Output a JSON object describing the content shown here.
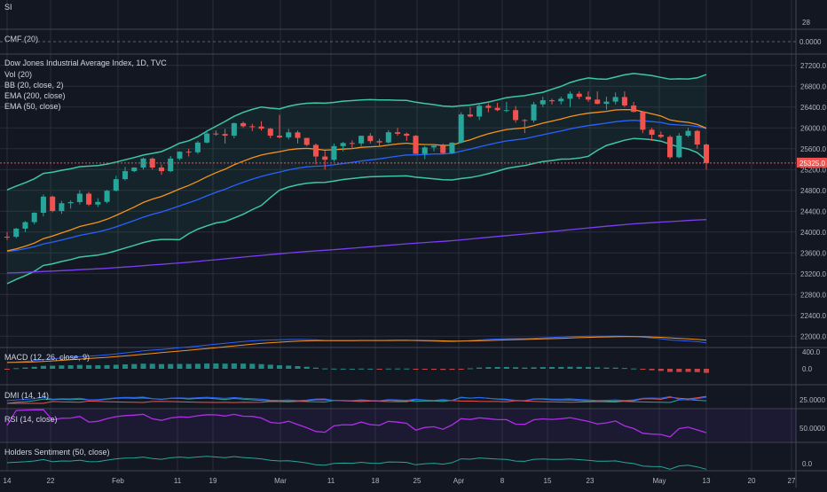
{
  "panes": {
    "si": {
      "label": "SI",
      "value_label": "28"
    },
    "cmf": {
      "label": "CMF (20)",
      "value_label": "0.0000"
    },
    "main": {
      "title": "Dow Jones Industrial Average Index, 1D, TVC",
      "indicators": [
        "Vol (20)",
        "BB (20, close, 2)",
        "EMA (200, close)",
        "EMA (50, close)"
      ],
      "price_label": "25325.0"
    },
    "macd": {
      "label": "MACD (12, 26, close, 9)",
      "ticks": [
        "400.0",
        "0.0"
      ]
    },
    "dmi": {
      "label": "DMI (14, 14)",
      "ticks": [
        "25.0000"
      ]
    },
    "rsi": {
      "label": "RSI (14, close)",
      "ticks": [
        "50.0000"
      ]
    },
    "holders": {
      "label": "Holders Sentiment (50, close)",
      "ticks": [
        "0.0"
      ]
    }
  },
  "colors": {
    "background": "#131722",
    "up": "#26a69a",
    "down": "#ef5350",
    "bb": "#3ec6a8",
    "ema50": "#f7931a",
    "ema200": "#7b3ff2",
    "ema_blue": "#2962ff",
    "price_tag": "#ef5350",
    "grid": "#2a2e39"
  },
  "chart_data": {
    "type": "candlestick",
    "y_ticks": [
      "27200.0",
      "26800.0",
      "26400.0",
      "26000.0",
      "25600.0",
      "25200.0",
      "24800.0",
      "24400.0",
      "24000.0",
      "23600.0",
      "23200.0",
      "22800.0",
      "22400.0",
      "22000.0"
    ],
    "ylim": [
      21800,
      27400
    ],
    "x_labels": [
      "14",
      "22",
      "Feb",
      "11",
      "19",
      "Mar",
      "11",
      "18",
      "25",
      "Apr",
      "8",
      "15",
      "23",
      "May",
      "13",
      "20",
      "27"
    ],
    "ohlc": [
      [
        23910,
        24000,
        23850,
        23909
      ],
      [
        23909,
        24080,
        23880,
        24065
      ],
      [
        24065,
        24210,
        24000,
        24190
      ],
      [
        24190,
        24380,
        24150,
        24370
      ],
      [
        24370,
        24720,
        24300,
        24680
      ],
      [
        24680,
        24700,
        24380,
        24404
      ],
      [
        24404,
        24600,
        24350,
        24553
      ],
      [
        24553,
        24610,
        24450,
        24575
      ],
      [
        24575,
        24800,
        24530,
        24737
      ],
      [
        24737,
        24770,
        24500,
        24528
      ],
      [
        24528,
        24650,
        24480,
        24579
      ],
      [
        24579,
        24810,
        24550,
        24793
      ],
      [
        24793,
        25080,
        24780,
        25015
      ],
      [
        25015,
        25250,
        24990,
        25169
      ],
      [
        25169,
        25240,
        25150,
        25239
      ],
      [
        25239,
        25430,
        25200,
        25411
      ],
      [
        25411,
        25430,
        25200,
        25239
      ],
      [
        25239,
        25300,
        25100,
        25169
      ],
      [
        25169,
        25460,
        25150,
        25411
      ],
      [
        25411,
        25550,
        25380,
        25543
      ],
      [
        25543,
        25600,
        25450,
        25532
      ],
      [
        25532,
        25750,
        25500,
        25718
      ],
      [
        25718,
        25960,
        25700,
        25891
      ],
      [
        25891,
        25950,
        25850,
        25883
      ],
      [
        25883,
        25980,
        25700,
        25850
      ],
      [
        25850,
        26100,
        25800,
        26091
      ],
      [
        26091,
        26120,
        26000,
        26031
      ],
      [
        26031,
        26080,
        25940,
        26026
      ],
      [
        26026,
        26130,
        25950,
        25985
      ],
      [
        25985,
        26000,
        25800,
        25850
      ],
      [
        25850,
        26250,
        25800,
        25819
      ],
      [
        25819,
        25980,
        25780,
        25914
      ],
      [
        25914,
        25950,
        25700,
        25807
      ],
      [
        25807,
        25810,
        25650,
        25673
      ],
      [
        25673,
        25700,
        25300,
        25450
      ],
      [
        25450,
        25560,
        25200,
        25388
      ],
      [
        25388,
        25700,
        25350,
        25650
      ],
      [
        25650,
        25730,
        25550,
        25709
      ],
      [
        25709,
        25760,
        25600,
        25702
      ],
      [
        25702,
        25850,
        25650,
        25848
      ],
      [
        25848,
        25900,
        25700,
        25745
      ],
      [
        25745,
        25790,
        25650,
        25720
      ],
      [
        25720,
        25960,
        25700,
        25916
      ],
      [
        25916,
        26000,
        25850,
        25887
      ],
      [
        25887,
        25910,
        25750,
        25849
      ],
      [
        25849,
        25860,
        25500,
        25502
      ],
      [
        25502,
        25650,
        25400,
        25625
      ],
      [
        25625,
        25680,
        25550,
        25657
      ],
      [
        25657,
        25700,
        25500,
        25516
      ],
      [
        25516,
        25720,
        25500,
        25717
      ],
      [
        25717,
        26300,
        25700,
        26258
      ],
      [
        26258,
        26400,
        26200,
        26218
      ],
      [
        26218,
        26450,
        26150,
        26425
      ],
      [
        26425,
        26470,
        26300,
        26384
      ],
      [
        26384,
        26480,
        26320,
        26341
      ],
      [
        26341,
        26500,
        26300,
        26341
      ],
      [
        26341,
        26420,
        26100,
        26150
      ],
      [
        26150,
        26170,
        25900,
        26143
      ],
      [
        26143,
        26500,
        26100,
        26452
      ],
      [
        26452,
        26600,
        26400,
        26531
      ],
      [
        26531,
        26560,
        26450,
        26511
      ],
      [
        26511,
        26600,
        26450,
        26559
      ],
      [
        26559,
        26700,
        26400,
        26656
      ],
      [
        26656,
        26700,
        26550,
        26597
      ],
      [
        26597,
        26700,
        26500,
        26543
      ],
      [
        26543,
        26700,
        26450,
        26462
      ],
      [
        26462,
        26600,
        26350,
        26504
      ],
      [
        26504,
        26680,
        26450,
        26592
      ],
      [
        26592,
        26700,
        26400,
        26430
      ],
      [
        26430,
        26500,
        26300,
        26307
      ],
      [
        26307,
        26320,
        25900,
        25965
      ],
      [
        25965,
        26000,
        25750,
        25867
      ],
      [
        25867,
        25930,
        25800,
        25828
      ],
      [
        25828,
        25860,
        25400,
        25435
      ],
      [
        25435,
        25900,
        25420,
        25850
      ],
      [
        25850,
        26000,
        25820,
        25942
      ],
      [
        25942,
        25960,
        25600,
        25680
      ],
      [
        25680,
        25700,
        25200,
        25325
      ]
    ],
    "series": [
      {
        "name": "BB (20, close, 2)",
        "values": []
      },
      {
        "name": "EMA (50, close)",
        "values": []
      },
      {
        "name": "EMA (200, close)",
        "values": []
      }
    ]
  }
}
